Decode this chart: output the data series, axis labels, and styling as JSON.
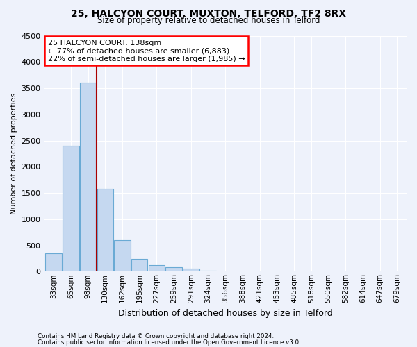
{
  "title": "25, HALCYON COURT, MUXTON, TELFORD, TF2 8RX",
  "subtitle": "Size of property relative to detached houses in Telford",
  "xlabel": "Distribution of detached houses by size in Telford",
  "ylabel": "Number of detached properties",
  "categories": [
    "33sqm",
    "65sqm",
    "98sqm",
    "130sqm",
    "162sqm",
    "195sqm",
    "227sqm",
    "259sqm",
    "291sqm",
    "324sqm",
    "356sqm",
    "388sqm",
    "421sqm",
    "453sqm",
    "485sqm",
    "518sqm",
    "550sqm",
    "582sqm",
    "614sqm",
    "647sqm",
    "679sqm"
  ],
  "values": [
    350,
    2400,
    3600,
    1580,
    600,
    240,
    120,
    80,
    50,
    12,
    5,
    3,
    3,
    3,
    2,
    1,
    1,
    0,
    0,
    0,
    0
  ],
  "bar_color": "#c5d8f0",
  "bar_edge_color": "#6aaad4",
  "red_line_x": 2.5,
  "marker_line1": "25 HALCYON COURT: 138sqm",
  "marker_line2": "← 77% of detached houses are smaller (6,883)",
  "marker_line3": "22% of semi-detached houses are larger (1,985) →",
  "marker_color": "#aa0000",
  "ylim": [
    0,
    4500
  ],
  "yticks": [
    0,
    500,
    1000,
    1500,
    2000,
    2500,
    3000,
    3500,
    4000,
    4500
  ],
  "footnote1": "Contains HM Land Registry data © Crown copyright and database right 2024.",
  "footnote2": "Contains public sector information licensed under the Open Government Licence v3.0.",
  "background_color": "#eef2fb",
  "grid_color": "#ffffff"
}
